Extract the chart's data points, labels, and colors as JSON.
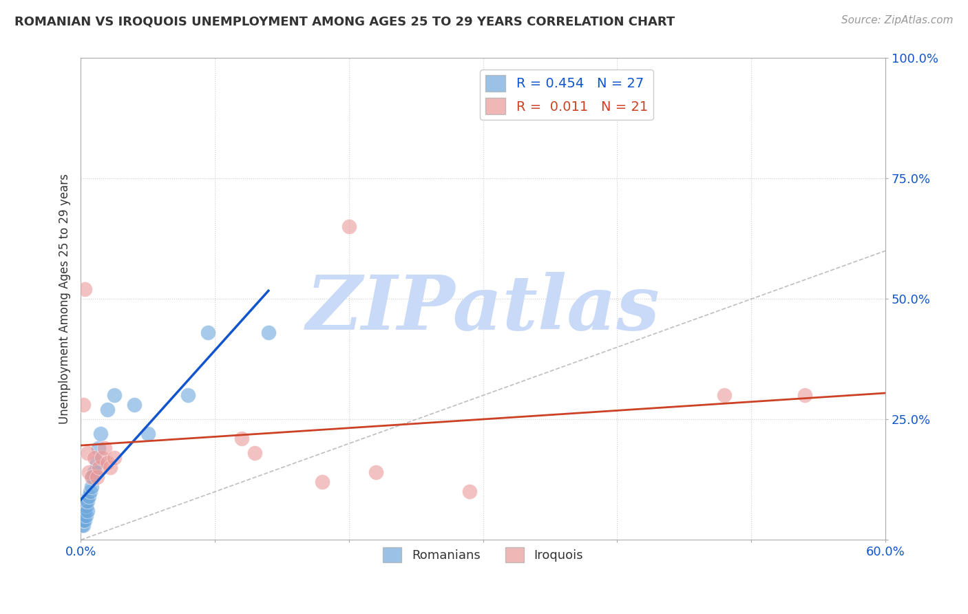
{
  "title": "ROMANIAN VS IROQUOIS UNEMPLOYMENT AMONG AGES 25 TO 29 YEARS CORRELATION CHART",
  "source": "Source: ZipAtlas.com",
  "ylabel": "Unemployment Among Ages 25 to 29 years",
  "xlim": [
    0.0,
    0.6
  ],
  "ylim": [
    0.0,
    1.0
  ],
  "xticks": [
    0.0,
    0.1,
    0.2,
    0.3,
    0.4,
    0.5,
    0.6
  ],
  "yticks": [
    0.0,
    0.25,
    0.5,
    0.75,
    1.0
  ],
  "romanians_R": 0.454,
  "romanians_N": 27,
  "iroquois_R": 0.011,
  "iroquois_N": 21,
  "romanian_color": "#6fa8dc",
  "iroquois_color": "#ea9999",
  "romanian_line_color": "#1155cc",
  "iroquois_line_color": "#cc4125",
  "diagonal_color": "#b7b7b7",
  "background_color": "#ffffff",
  "watermark": "ZIPatlas",
  "watermark_color": "#c9daf8",
  "romanians_x": [
    0.001,
    0.001,
    0.002,
    0.002,
    0.002,
    0.003,
    0.003,
    0.004,
    0.004,
    0.004,
    0.005,
    0.005,
    0.006,
    0.007,
    0.008,
    0.009,
    0.01,
    0.012,
    0.013,
    0.015,
    0.02,
    0.025,
    0.04,
    0.05,
    0.08,
    0.095,
    0.14
  ],
  "romanians_y": [
    0.03,
    0.04,
    0.03,
    0.04,
    0.05,
    0.04,
    0.06,
    0.05,
    0.07,
    0.08,
    0.06,
    0.08,
    0.09,
    0.1,
    0.11,
    0.13,
    0.14,
    0.16,
    0.19,
    0.22,
    0.27,
    0.3,
    0.28,
    0.22,
    0.3,
    0.43,
    0.43
  ],
  "iroquois_x": [
    0.002,
    0.003,
    0.005,
    0.006,
    0.008,
    0.01,
    0.012,
    0.014,
    0.016,
    0.018,
    0.02,
    0.022,
    0.025,
    0.12,
    0.13,
    0.18,
    0.2,
    0.22,
    0.29,
    0.48,
    0.54
  ],
  "iroquois_y": [
    0.28,
    0.52,
    0.18,
    0.14,
    0.13,
    0.17,
    0.13,
    0.15,
    0.17,
    0.19,
    0.16,
    0.15,
    0.17,
    0.21,
    0.18,
    0.12,
    0.65,
    0.14,
    0.1,
    0.3,
    0.3
  ]
}
